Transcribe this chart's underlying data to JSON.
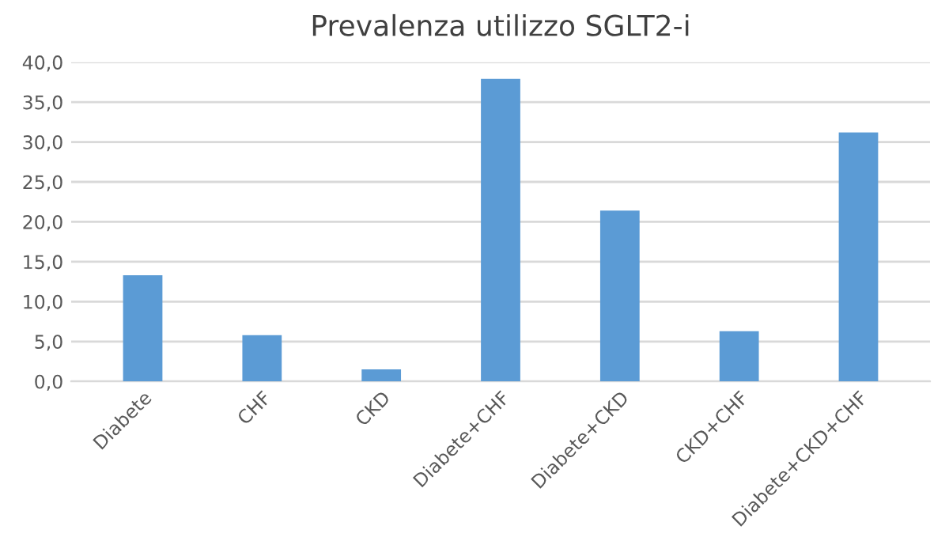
{
  "chart_data": {
    "type": "bar",
    "title": "Prevalenza utilizzo SGLT2-i",
    "categories": [
      "Diabete",
      "CHF",
      "CKD",
      "Diabete+CHF",
      "Diabete+CKD",
      "CKD+CHF",
      "Diabete+CKD+CHF"
    ],
    "values": [
      13.3,
      5.8,
      1.5,
      37.9,
      21.4,
      6.3,
      31.2
    ],
    "color": "#5b9bd5",
    "ylim": [
      0,
      40
    ],
    "yticks": [
      {
        "value": 0,
        "label": "0,0"
      },
      {
        "value": 5,
        "label": "5,0"
      },
      {
        "value": 10,
        "label": "10,0"
      },
      {
        "value": 15,
        "label": "15,0"
      },
      {
        "value": 20,
        "label": "20,0"
      },
      {
        "value": 25,
        "label": "25,0"
      },
      {
        "value": 30,
        "label": "30,0"
      },
      {
        "value": 35,
        "label": "35,0"
      },
      {
        "value": 40,
        "label": "40,0"
      }
    ],
    "grid": "y"
  }
}
